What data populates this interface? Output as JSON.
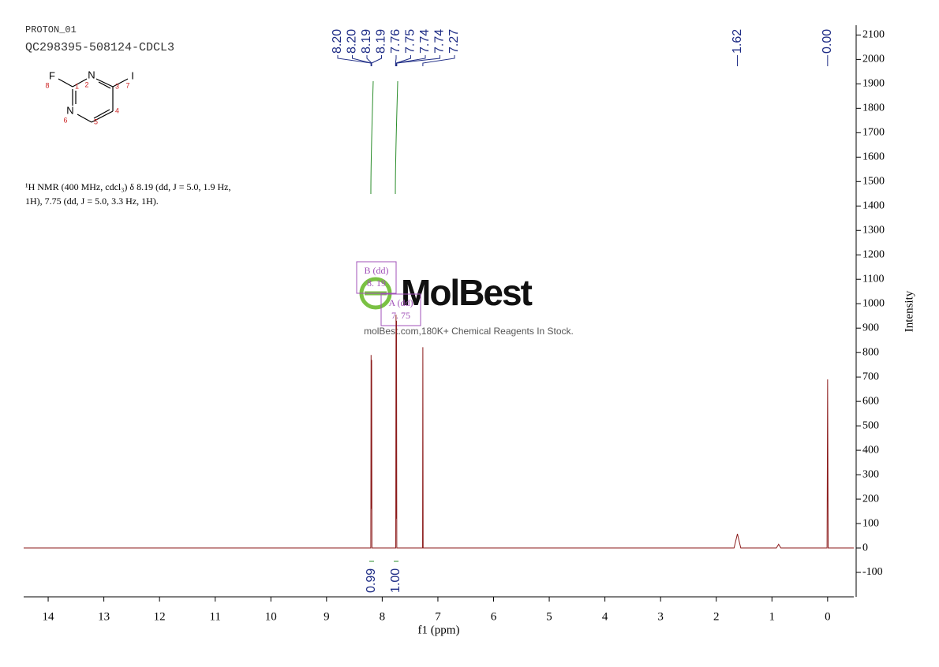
{
  "chart_data": {
    "type": "nmr",
    "title": "PROTON_01",
    "subtitle": "QC298395-508124-CDCL3",
    "description": [
      "¹H NMR (400 MHz, cdcl₃) δ 8.19 (dd, J = 5.0, 1.9 Hz,",
      "1H), 7.75 (dd, J = 5.0, 3.3 Hz, 1H)."
    ],
    "structure": [
      {
        "symbol": "F",
        "number": "8"
      },
      {
        "symbol": "N",
        "number": "2"
      },
      {
        "symbol": "I",
        "number": "7"
      },
      {
        "symbol": "N",
        "number": "6"
      },
      {
        "symbol": "",
        "number": "1"
      },
      {
        "symbol": "",
        "number": "3"
      },
      {
        "symbol": "",
        "number": "4"
      },
      {
        "symbol": "",
        "number": "5"
      }
    ],
    "watermark": "MolBest",
    "watermark_note": "molBest.com,180K+ Chemical Reagents In Stock.",
    "x_label": "f1 (ppm)",
    "y_label": "Intensity",
    "xlim": [
      14.44,
      -0.47
    ],
    "ylim": [
      -200,
      2140
    ],
    "xticks": [
      14,
      13,
      12,
      11,
      10,
      9,
      8,
      7,
      6,
      5,
      4,
      3,
      2,
      1,
      0
    ],
    "yticks": [
      -100,
      0,
      100,
      200,
      300,
      400,
      500,
      600,
      700,
      800,
      900,
      1000,
      1100,
      1200,
      1300,
      1400,
      1500,
      1600,
      1700,
      1800,
      1900,
      2000,
      2100
    ],
    "series": [
      {
        "name": "spectrum",
        "color": "#8b1a1a",
        "x": [
          14.44,
          8.23,
          8.205,
          8.2,
          8.197,
          8.19,
          8.185,
          7.78,
          7.757,
          7.752,
          7.748,
          7.743,
          7.738,
          7.3,
          7.275,
          7.27,
          7.265,
          1.68,
          1.62,
          1.56,
          0.92,
          0.88,
          0.84,
          0.01,
          0.0,
          -0.01,
          -0.47
        ],
        "values": [
          0,
          0,
          0,
          790,
          160,
          770,
          0,
          0,
          0,
          955,
          120,
          930,
          0,
          0,
          0,
          822,
          0,
          0,
          58,
          0,
          0,
          15,
          0,
          0,
          690,
          0,
          0
        ]
      }
    ],
    "peak_labels": [
      {
        "value": 8.2,
        "label": "8.20"
      },
      {
        "value": 8.2,
        "label": "8.20"
      },
      {
        "value": 8.19,
        "label": "8.19"
      },
      {
        "value": 8.19,
        "label": "8.19"
      },
      {
        "value": 7.76,
        "label": "7.76"
      },
      {
        "value": 7.75,
        "label": "7.75"
      },
      {
        "value": 7.74,
        "label": "7.74"
      },
      {
        "value": 7.74,
        "label": "7.74"
      },
      {
        "value": 7.27,
        "label": "7.27"
      },
      {
        "value": 1.62,
        "label": "1.62"
      },
      {
        "value": 0,
        "label": "0.00"
      }
    ],
    "integrals": [
      {
        "center": 8.19,
        "value": 0.99,
        "label": "0.99"
      },
      {
        "center": 7.75,
        "value": 1,
        "label": "1.00"
      }
    ],
    "multiplets": [
      {
        "label": "B (dd)",
        "shift": "8. 19"
      },
      {
        "label": "A (dd)",
        "shift": "7. 75"
      }
    ]
  }
}
